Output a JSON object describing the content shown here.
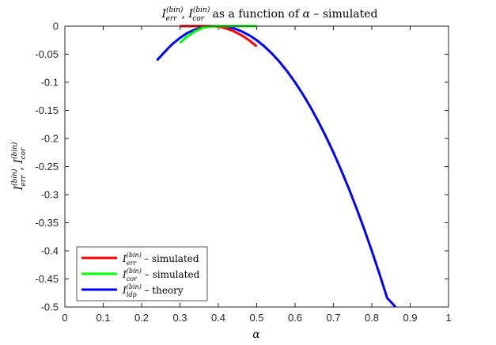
{
  "chart_data": {
    "type": "line",
    "title_parts": {
      "i1": "I",
      "sup1": "(bin)",
      "sub1": "err",
      "sep": ", ",
      "i2": "I",
      "sup2": "(bin)",
      "sub2": "cor",
      "rest": " as a function of ",
      "alpha": "α",
      "tail": " – simulated"
    },
    "xlabel": "α",
    "ylabel_parts": {
      "i1": "I",
      "sup1": "(bin)",
      "sub1": "err",
      "sep": ", ",
      "i2": "I",
      "sup2": "(bin)",
      "sub2": "cor"
    },
    "xlim": [
      0,
      1
    ],
    "ylim": [
      -0.5,
      0
    ],
    "x_ticks": [
      "0",
      "0.1",
      "0.2",
      "0.3",
      "0.4",
      "0.5",
      "0.6",
      "0.7",
      "0.8",
      "0.9",
      "1"
    ],
    "y_ticks": [
      "0",
      "-0.05",
      "-0.1",
      "-0.15",
      "-0.2",
      "-0.25",
      "-0.3",
      "-0.35",
      "-0.4",
      "-0.45",
      "-0.5"
    ],
    "grid": false,
    "legend_position": "bottom-left",
    "series": [
      {
        "name": {
          "i": "I",
          "sup": "(bin)",
          "sub": "err",
          "rest": " – simulated"
        },
        "color": "#ff0000",
        "x": [
          0.3,
          0.32,
          0.34,
          0.36,
          0.38,
          0.4,
          0.42,
          0.44,
          0.46,
          0.48,
          0.5
        ],
        "y": [
          0,
          0,
          0,
          0,
          0,
          -0.001,
          -0.004,
          -0.009,
          -0.016,
          -0.025,
          -0.036
        ]
      },
      {
        "name": {
          "i": "I",
          "sup": "(bin)",
          "sub": "cor",
          "rest": " – simulated"
        },
        "color": "#00ff00",
        "x": [
          0.3,
          0.32,
          0.34,
          0.36,
          0.38,
          0.4,
          0.42,
          0.44,
          0.46,
          0.48,
          0.5
        ],
        "y": [
          -0.03,
          -0.018,
          -0.009,
          -0.003,
          -0.0005,
          0,
          0,
          0,
          0,
          0,
          0
        ]
      },
      {
        "name": {
          "i": "I",
          "sup": "(bin)",
          "sub": "ldp",
          "rest": " – theory"
        },
        "color": "#0000ff",
        "x": [
          0.24,
          0.26,
          0.28,
          0.3,
          0.32,
          0.34,
          0.36,
          0.38,
          0.4,
          0.42,
          0.44,
          0.46,
          0.48,
          0.5,
          0.52,
          0.54,
          0.56,
          0.58,
          0.6,
          0.62,
          0.64,
          0.66,
          0.68,
          0.7,
          0.72,
          0.74,
          0.76,
          0.78,
          0.8,
          0.82,
          0.84,
          0.862
        ],
        "y": [
          -0.061,
          -0.046,
          -0.032,
          -0.021,
          -0.012,
          -0.006,
          -0.002,
          0,
          0,
          -0.001,
          -0.004,
          -0.009,
          -0.016,
          -0.025,
          -0.036,
          -0.049,
          -0.064,
          -0.081,
          -0.1,
          -0.121,
          -0.144,
          -0.169,
          -0.196,
          -0.225,
          -0.256,
          -0.289,
          -0.324,
          -0.361,
          -0.4,
          -0.441,
          -0.484,
          -0.5
        ]
      }
    ]
  }
}
